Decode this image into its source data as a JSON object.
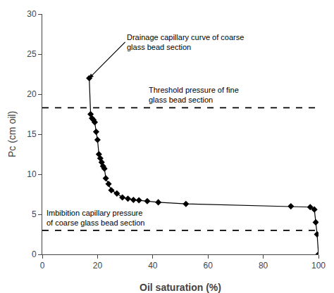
{
  "chart_data": {
    "type": "line",
    "x": [
      17,
      17.5,
      18,
      18.5,
      19,
      19.5,
      20,
      20.5,
      21,
      21.5,
      22,
      22.5,
      23,
      24,
      25,
      27,
      29,
      31,
      33,
      35,
      38,
      42,
      52,
      90,
      97,
      98.5,
      99.0,
      99.5,
      100.0
    ],
    "values": [
      22,
      17.5,
      17.0,
      16.8,
      16.5,
      15.3,
      14.3,
      12.5,
      12.0,
      11.5,
      11.0,
      10.7,
      9.5,
      8.8,
      8.0,
      7.6,
      7.1,
      6.95,
      6.8,
      6.75,
      6.65,
      6.5,
      6.3,
      6.0,
      5.9,
      5.6,
      4.0,
      2.5,
      0.0
    ],
    "color": "black",
    "marker": "diamond",
    "xlabel": "Oil saturation (%)",
    "ylabel": "Pc (cm oil)",
    "xlim": [
      0,
      100
    ],
    "ylim": [
      0,
      30
    ],
    "xticks": [
      0,
      20,
      40,
      60,
      80,
      100
    ],
    "yticks": [
      0,
      5,
      10,
      15,
      20,
      25,
      30
    ],
    "grid": false,
    "reference_lines": [
      {
        "value": 18.3,
        "line_style": "dashed",
        "color": "black"
      },
      {
        "value": 3.0,
        "line_style": "dashed",
        "color": "black"
      }
    ],
    "annotations": [
      "Drainage capillary curve of coarse\nglass bead section",
      "Threshold pressure of fine\nglass bead section",
      "Imbibition capillary pressure\nof coarse glass bead section"
    ]
  }
}
